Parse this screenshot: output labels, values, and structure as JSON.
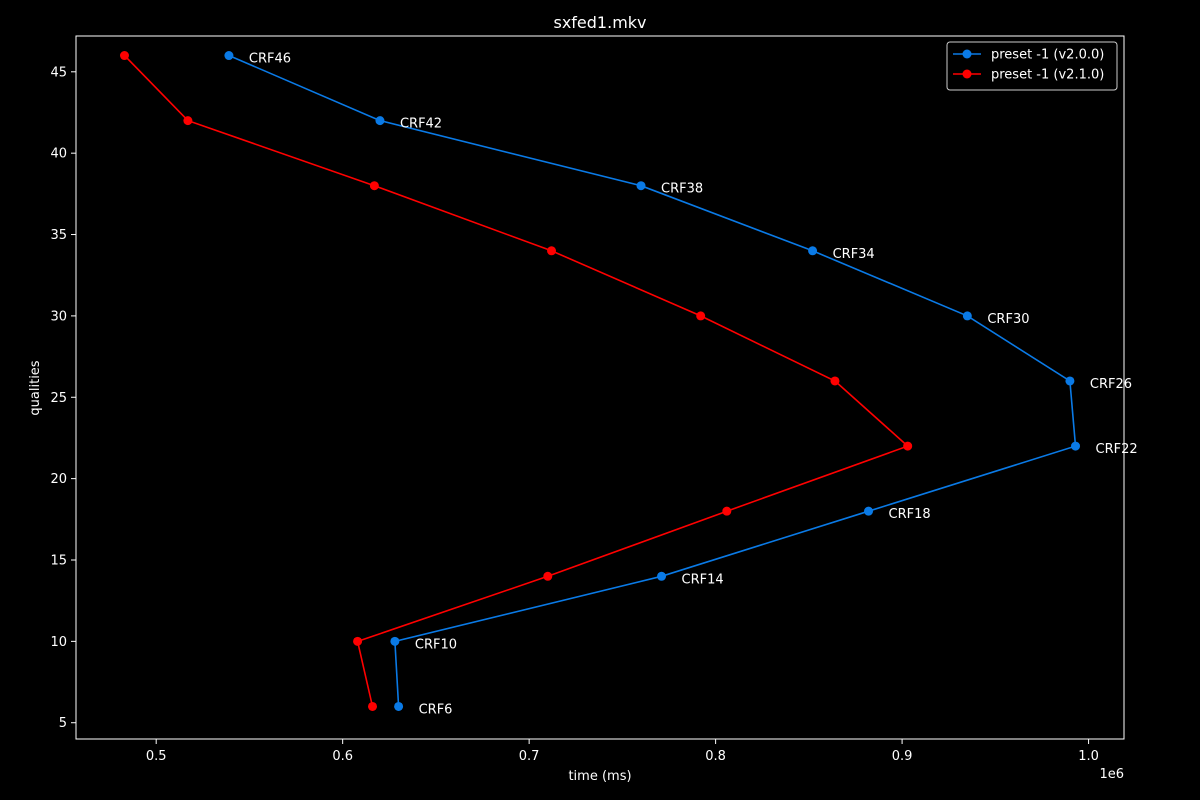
{
  "chart_data": {
    "type": "line",
    "title": "sxfed1.mkv",
    "xlabel": "time (ms)",
    "ylabel": "qualities",
    "x_offset_label": "1e6",
    "xlim": [
      457000,
      1019000
    ],
    "ylim": [
      4.0,
      47.2
    ],
    "x_ticks": [
      500000,
      600000,
      700000,
      800000,
      900000,
      1000000
    ],
    "x_tick_labels": [
      "0.5",
      "0.6",
      "0.7",
      "0.8",
      "0.9",
      "1.0"
    ],
    "y_ticks": [
      5,
      10,
      15,
      20,
      25,
      30,
      35,
      40,
      45
    ],
    "y_tick_labels": [
      "5",
      "10",
      "15",
      "20",
      "25",
      "30",
      "35",
      "40",
      "45"
    ],
    "grid": false,
    "legend_position": "top-right",
    "series": [
      {
        "name": "preset -1 (v2.0.0)",
        "color": "#0a7ae6",
        "x": [
          539000,
          620000,
          760000,
          852000,
          935000,
          990000,
          993000,
          882000,
          771000,
          628000,
          630000
        ],
        "y": [
          46,
          42,
          38,
          34,
          30,
          26,
          22,
          18,
          14,
          10,
          6
        ]
      },
      {
        "name": "preset -1 (v2.1.0)",
        "color": "#ff0000",
        "x": [
          483000,
          517000,
          617000,
          712000,
          792000,
          864000,
          903000,
          806000,
          710000,
          608000,
          616000
        ],
        "y": [
          46,
          42,
          38,
          34,
          30,
          26,
          22,
          18,
          14,
          10,
          6
        ]
      }
    ],
    "annotations": [
      {
        "text": "CRF46",
        "x": 539000,
        "y": 46
      },
      {
        "text": "CRF42",
        "x": 620000,
        "y": 42
      },
      {
        "text": "CRF38",
        "x": 760000,
        "y": 38
      },
      {
        "text": "CRF34",
        "x": 852000,
        "y": 34
      },
      {
        "text": "CRF30",
        "x": 935000,
        "y": 30
      },
      {
        "text": "CRF26",
        "x": 990000,
        "y": 26
      },
      {
        "text": "CRF22",
        "x": 993000,
        "y": 22
      },
      {
        "text": "CRF18",
        "x": 882000,
        "y": 18
      },
      {
        "text": "CRF14",
        "x": 771000,
        "y": 14
      },
      {
        "text": "CRF10",
        "x": 628000,
        "y": 10
      },
      {
        "text": "CRF6",
        "x": 630000,
        "y": 6
      }
    ]
  }
}
